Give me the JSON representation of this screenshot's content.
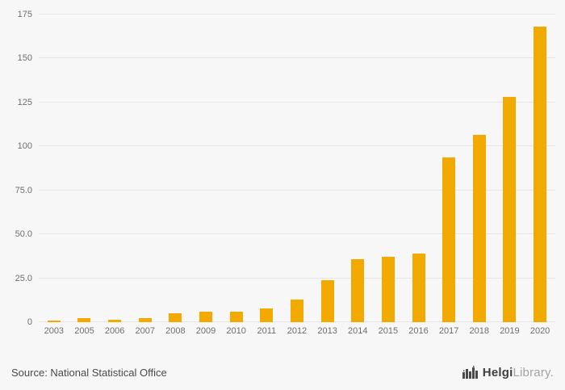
{
  "chart_data": {
    "type": "bar",
    "title": "",
    "xlabel": "",
    "ylabel": "",
    "categories": [
      "2003",
      "2005",
      "2006",
      "2007",
      "2008",
      "2009",
      "2010",
      "2011",
      "2012",
      "2013",
      "2014",
      "2015",
      "2016",
      "2017",
      "2018",
      "2019",
      "2020"
    ],
    "values": [
      1,
      2.5,
      1.5,
      2.5,
      5,
      6,
      6,
      8,
      13,
      24,
      36,
      37,
      39,
      93.5,
      106.5,
      128,
      168
    ],
    "ylim": [
      0,
      175
    ],
    "yticks": [
      0,
      25,
      50,
      75,
      100,
      125,
      150,
      175
    ],
    "ytick_labels": [
      "0",
      "25.0",
      "50.0",
      "75.0",
      "100",
      "125",
      "150",
      "175"
    ],
    "grid": true,
    "legend": "none",
    "bar_color": "#f2a900",
    "background": "#f7f7f7"
  },
  "footer": {
    "source_label": "Source: National Statistical Office",
    "logo": {
      "icon": "bar-chart-logo-icon",
      "brand_bold": "Helgi",
      "brand_light": "Library."
    }
  }
}
